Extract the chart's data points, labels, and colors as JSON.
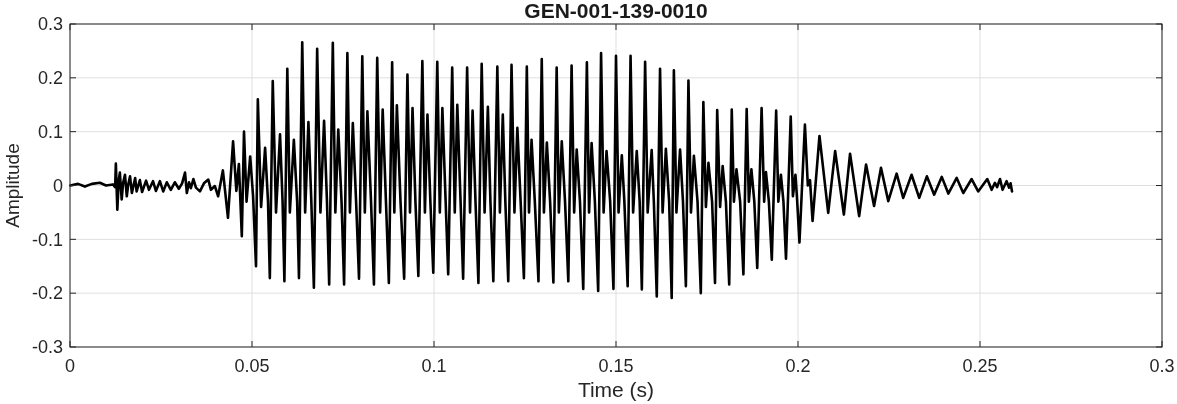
{
  "chart_data": {
    "type": "line",
    "title": "GEN-001-139-0010",
    "xlabel": "Time (s)",
    "ylabel": "Amplitude",
    "x": [
      0.0001,
      0.0022,
      0.0041,
      0.006,
      0.0082,
      0.0099,
      0.0118,
      0.0124,
      0.0126,
      0.013,
      0.0134,
      0.0137,
      0.0142,
      0.0146,
      0.0151,
      0.0156,
      0.016,
      0.0165,
      0.017,
      0.0179,
      0.0183,
      0.0192,
      0.0198,
      0.0209,
      0.0217,
      0.0228,
      0.0236,
      0.0247,
      0.0256,
      0.0266,
      0.0277,
      0.0288,
      0.0299,
      0.0308,
      0.0316,
      0.0321,
      0.0327,
      0.0332,
      0.0339,
      0.0346,
      0.0357,
      0.0368,
      0.038,
      0.0387,
      0.0398,
      0.0407,
      0.042,
      0.0434,
      0.0448,
      0.0457,
      0.0464,
      0.0472,
      0.0478,
      0.0485,
      0.0495,
      0.0503,
      0.0511,
      0.0516,
      0.0525,
      0.0536,
      0.0544,
      0.0549,
      0.0557,
      0.0566,
      0.0577,
      0.0584,
      0.0589,
      0.0597,
      0.0604,
      0.0615,
      0.0624,
      0.0629,
      0.0638,
      0.0646,
      0.0655,
      0.0663,
      0.067,
      0.0679,
      0.0688,
      0.0698,
      0.0706,
      0.0712,
      0.0722,
      0.0729,
      0.0737,
      0.0746,
      0.0753,
      0.0762,
      0.0769,
      0.0777,
      0.0786,
      0.0794,
      0.0803,
      0.081,
      0.0817,
      0.0827,
      0.0835,
      0.0844,
      0.0852,
      0.0859,
      0.0868,
      0.0876,
      0.0885,
      0.0891,
      0.0898,
      0.0908,
      0.0918,
      0.0927,
      0.0934,
      0.0941,
      0.0949,
      0.0957,
      0.0968,
      0.0975,
      0.0982,
      0.099,
      0.0998,
      0.1009,
      0.1016,
      0.1023,
      0.1032,
      0.1039,
      0.105,
      0.1057,
      0.1064,
      0.1073,
      0.108,
      0.1091,
      0.1099,
      0.1106,
      0.1114,
      0.1122,
      0.1131,
      0.1139,
      0.1148,
      0.1155,
      0.1163,
      0.1174,
      0.1181,
      0.1189,
      0.1196,
      0.1204,
      0.1213,
      0.1221,
      0.1229,
      0.1238,
      0.1247,
      0.1255,
      0.1261,
      0.1268,
      0.1277,
      0.1287,
      0.1296,
      0.1302,
      0.131,
      0.1319,
      0.1328,
      0.1337,
      0.1343,
      0.1351,
      0.136,
      0.1369,
      0.1378,
      0.1385,
      0.1392,
      0.1401,
      0.141,
      0.142,
      0.1426,
      0.1433,
      0.1442,
      0.1451,
      0.1459,
      0.1466,
      0.1474,
      0.1484,
      0.1493,
      0.15,
      0.1507,
      0.1516,
      0.1523,
      0.1532,
      0.154,
      0.1547,
      0.1557,
      0.1565,
      0.1571,
      0.158,
      0.1587,
      0.1598,
      0.1604,
      0.1612,
      0.1621,
      0.1628,
      0.1637,
      0.1646,
      0.1653,
      0.1659,
      0.1666,
      0.1676,
      0.1684,
      0.1692,
      0.1699,
      0.1706,
      0.1714,
      0.1724,
      0.1733,
      0.174,
      0.1747,
      0.1754,
      0.1764,
      0.1772,
      0.1778,
      0.1786,
      0.1793,
      0.1802,
      0.1811,
      0.1818,
      0.1824,
      0.1831,
      0.1841,
      0.185,
      0.1859,
      0.1865,
      0.1872,
      0.188,
      0.1888,
      0.19,
      0.1907,
      0.1912,
      0.192,
      0.1928,
      0.194,
      0.1946,
      0.1953,
      0.196,
      0.1967,
      0.198,
      0.1986,
      0.1993,
      0.1997,
      0.2004,
      0.2019,
      0.2027,
      0.2033,
      0.204,
      0.2059,
      0.2083,
      0.2102,
      0.2126,
      0.2143,
      0.2168,
      0.2187,
      0.2209,
      0.2228,
      0.2248,
      0.2271,
      0.2289,
      0.2312,
      0.2333,
      0.2354,
      0.2374,
      0.2395,
      0.2413,
      0.2436,
      0.2454,
      0.2477,
      0.2495,
      0.252,
      0.2532,
      0.2541,
      0.2547,
      0.2555,
      0.2562,
      0.2573,
      0.258,
      0.2584,
      0.2588
    ],
    "series": [
      {
        "color": "#000000",
        "values": [
          0,
          0.003,
          -0.002,
          0.003,
          0.005,
          0,
          0.002,
          -0.003,
          0.041,
          -0.045,
          0.01,
          0.024,
          -0.026,
          0.005,
          0.02,
          -0.02,
          0.002,
          0.017,
          -0.014,
          0.014,
          -0.011,
          0.01,
          -0.012,
          0.009,
          -0.008,
          0.008,
          -0.01,
          0.008,
          -0.011,
          0.006,
          -0.008,
          0.006,
          -0.006,
          0.004,
          0.024,
          -0.014,
          0.006,
          -0.005,
          0.012,
          -0.004,
          -0.011,
          0.004,
          0.011,
          -0.008,
          -0.001,
          -0.02,
          0.028,
          -0.06,
          0.082,
          -0.01,
          0.04,
          -0.094,
          0.1,
          -0.03,
          0.054,
          -0.02,
          -0.15,
          0.16,
          -0.04,
          0.07,
          -0.03,
          -0.172,
          0.194,
          -0.05,
          0.095,
          -0.03,
          -0.178,
          0.217,
          -0.05,
          0.085,
          -0.03,
          -0.172,
          0.266,
          -0.05,
          0.118,
          -0.03,
          -0.19,
          0.254,
          -0.05,
          0.12,
          -0.03,
          -0.184,
          0.265,
          -0.05,
          0.104,
          -0.03,
          -0.184,
          0.246,
          -0.05,
          0.116,
          -0.03,
          -0.173,
          0.24,
          -0.05,
          0.138,
          -0.03,
          -0.184,
          0.237,
          -0.05,
          0.141,
          -0.03,
          -0.181,
          0.229,
          -0.05,
          0.149,
          -0.03,
          -0.173,
          0.206,
          -0.05,
          0.144,
          -0.03,
          -0.168,
          0.231,
          -0.05,
          0.132,
          -0.03,
          -0.162,
          0.23,
          -0.05,
          0.144,
          -0.03,
          -0.165,
          0.219,
          -0.05,
          0.15,
          -0.03,
          -0.173,
          0.219,
          -0.05,
          0.139,
          -0.03,
          -0.181,
          0.226,
          -0.05,
          0.146,
          -0.03,
          -0.178,
          0.221,
          -0.05,
          0.132,
          -0.03,
          -0.178,
          0.224,
          -0.05,
          0.107,
          -0.03,
          -0.172,
          0.221,
          -0.05,
          0.085,
          -0.03,
          -0.178,
          0.235,
          -0.05,
          0.08,
          -0.03,
          -0.18,
          0.219,
          -0.05,
          0.082,
          -0.03,
          -0.178,
          0.223,
          -0.05,
          0.067,
          -0.03,
          -0.192,
          0.229,
          -0.05,
          0.079,
          -0.03,
          -0.196,
          0.246,
          -0.05,
          0.064,
          -0.03,
          -0.192,
          0.241,
          -0.05,
          0.056,
          -0.03,
          -0.187,
          0.241,
          -0.05,
          0.064,
          -0.03,
          -0.193,
          0.23,
          -0.05,
          0.066,
          -0.03,
          -0.206,
          0.217,
          -0.05,
          0.068,
          -0.03,
          -0.209,
          0.214,
          -0.05,
          0.067,
          -0.03,
          -0.187,
          0.195,
          -0.05,
          0.055,
          -0.03,
          -0.2,
          0.155,
          -0.04,
          0.042,
          -0.03,
          -0.181,
          0.14,
          -0.04,
          0.036,
          -0.03,
          -0.184,
          0.141,
          -0.03,
          0.03,
          -0.03,
          -0.165,
          0.142,
          -0.03,
          0.03,
          -0.03,
          -0.153,
          0.144,
          -0.03,
          0.025,
          -0.03,
          -0.138,
          0.139,
          -0.03,
          0.02,
          -0.03,
          -0.136,
          0.128,
          -0.02,
          0.02,
          -0.02,
          -0.106,
          0.113,
          0,
          0.01,
          -0.066,
          0.092,
          -0.051,
          0.064,
          -0.054,
          0.059,
          -0.057,
          0.039,
          -0.038,
          0.033,
          -0.029,
          0.022,
          -0.023,
          0.02,
          -0.023,
          0.017,
          -0.017,
          0.016,
          -0.015,
          0.014,
          -0.014,
          0.012,
          -0.011,
          0.012,
          -0.008,
          0.005,
          -0.003,
          0.012,
          -0.008,
          0.008,
          -0.004,
          0.004,
          -0.011
        ]
      }
    ],
    "xlim": [
      0,
      0.3
    ],
    "ylim": [
      -0.3,
      0.3
    ],
    "xticks": [
      0,
      0.05,
      0.1,
      0.15,
      0.2,
      0.25,
      0.3
    ],
    "yticks": [
      -0.3,
      -0.2,
      -0.1,
      0,
      0.1,
      0.2,
      0.3
    ],
    "grid": true,
    "line_style": "solid"
  }
}
